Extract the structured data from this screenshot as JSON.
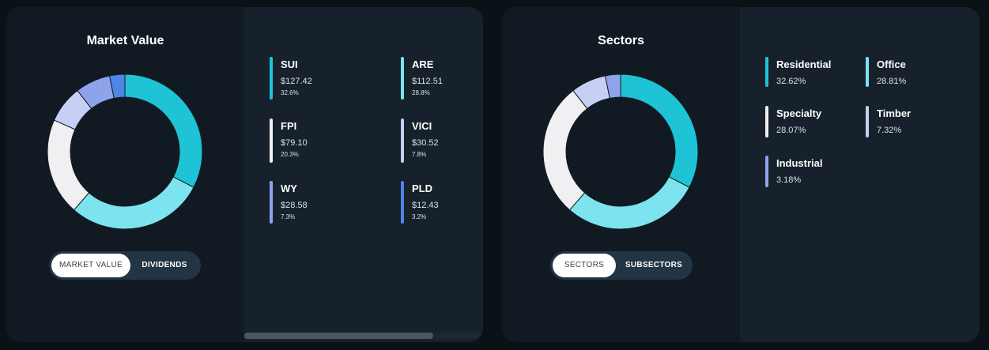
{
  "market": {
    "title": "Market Value",
    "toggle": {
      "active": "MARKET VALUE",
      "inactive": "DIVIDENDS"
    },
    "holdings": [
      {
        "name": "SUI",
        "value": "$127.42",
        "pct": "32.6%",
        "color": "#1ec3d6"
      },
      {
        "name": "ARE",
        "value": "$112.51",
        "pct": "28.8%",
        "color": "#7de3ee"
      },
      {
        "name": "FPI",
        "value": "$79.10",
        "pct": "20.3%",
        "color": "#f0f0f2"
      },
      {
        "name": "VICI",
        "value": "$30.52",
        "pct": "7.8%",
        "color": "#c7cff4"
      },
      {
        "name": "WY",
        "value": "$28.58",
        "pct": "7.3%",
        "color": "#8fa3ec"
      },
      {
        "name": "PLD",
        "value": "$12.43",
        "pct": "3.2%",
        "color": "#4f86e6"
      }
    ]
  },
  "sectors": {
    "title": "Sectors",
    "toggle": {
      "active": "SECTORS",
      "inactive": "SUBSECTORS"
    },
    "items": [
      {
        "name": "Residential",
        "pct": "32.62%",
        "color": "#1ec3d6"
      },
      {
        "name": "Office",
        "pct": "28.81%",
        "color": "#7de3ee"
      },
      {
        "name": "Specialty",
        "pct": "28.07%",
        "color": "#f0f0f2"
      },
      {
        "name": "Timber",
        "pct": "7.32%",
        "color": "#c7cff4"
      },
      {
        "name": "Industrial",
        "pct": "3.18%",
        "color": "#8fa3ec"
      }
    ]
  },
  "chart_data": [
    {
      "type": "pie",
      "title": "Market Value",
      "categories": [
        "SUI",
        "ARE",
        "FPI",
        "VICI",
        "WY",
        "PLD"
      ],
      "values": [
        127.42,
        112.51,
        79.1,
        30.52,
        28.58,
        12.43
      ],
      "percent": [
        32.6,
        28.8,
        20.3,
        7.8,
        7.3,
        3.2
      ],
      "colors": [
        "#1ec3d6",
        "#7de3ee",
        "#f0f0f2",
        "#c7cff4",
        "#8fa3ec",
        "#4f86e6"
      ]
    },
    {
      "type": "pie",
      "title": "Sectors",
      "categories": [
        "Residential",
        "Office",
        "Specialty",
        "Timber",
        "Industrial"
      ],
      "values": [
        32.62,
        28.81,
        28.07,
        7.32,
        3.18
      ],
      "colors": [
        "#1ec3d6",
        "#7de3ee",
        "#f0f0f2",
        "#c7cff4",
        "#8fa3ec"
      ]
    }
  ]
}
